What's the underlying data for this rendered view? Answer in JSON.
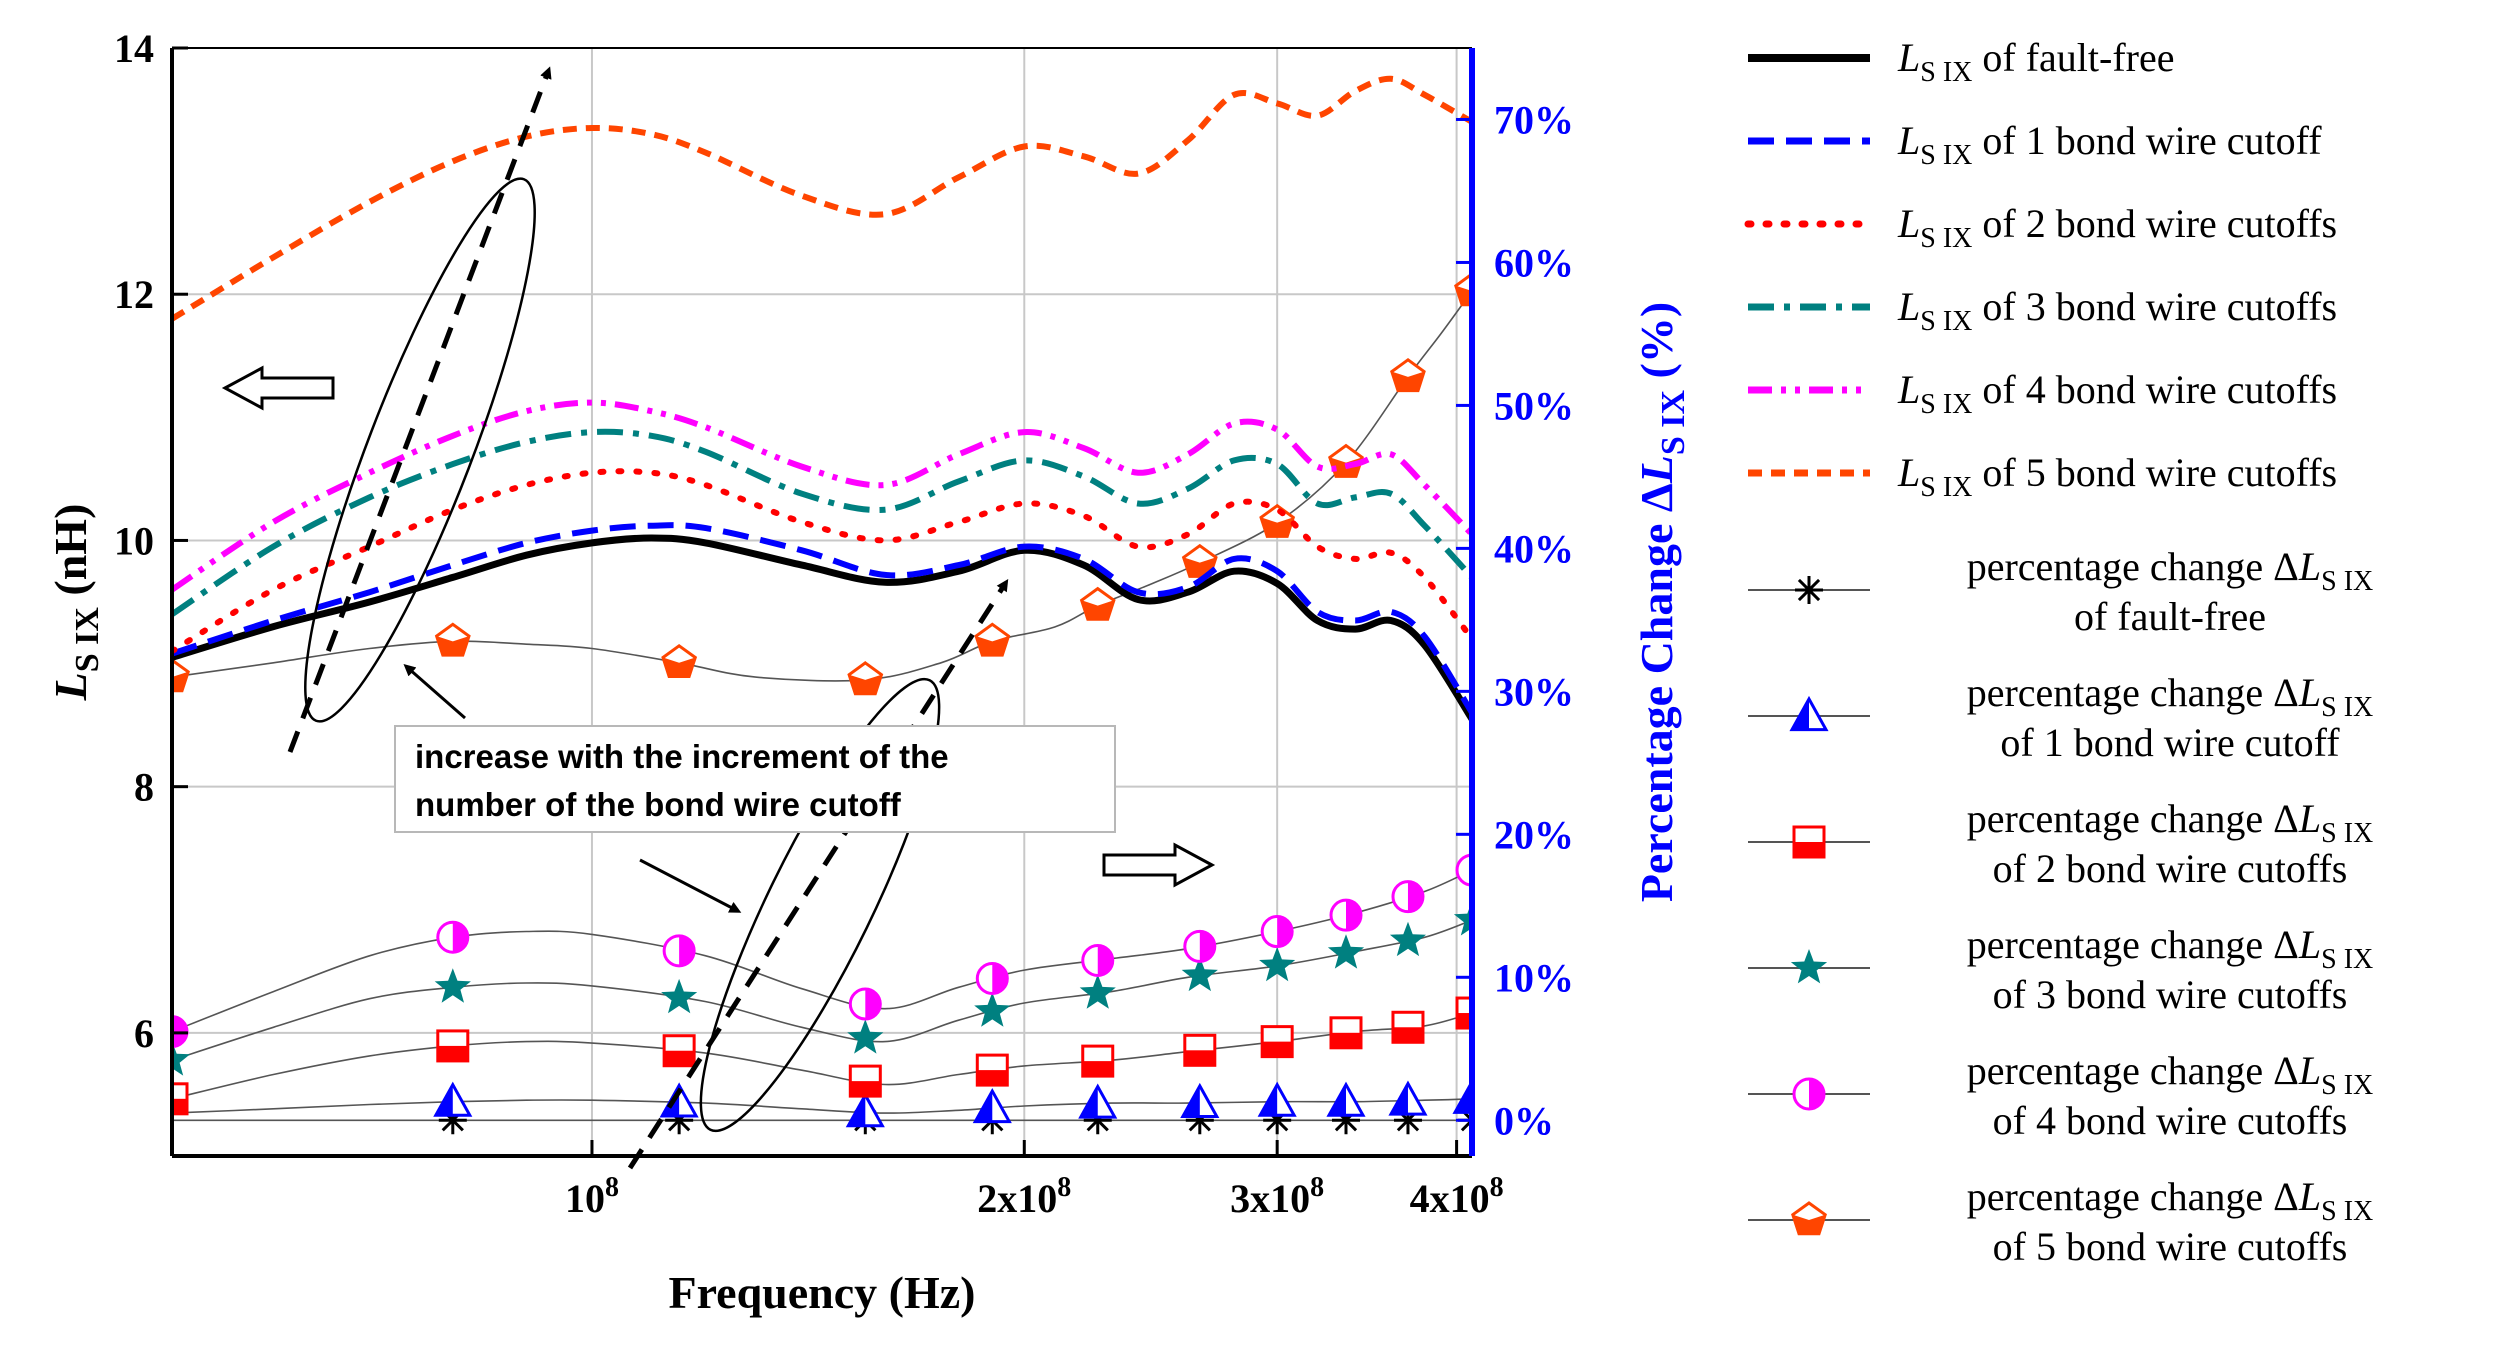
{
  "chart_data": {
    "type": "line",
    "x_axis": {
      "label": "Frequency (Hz)",
      "scale": "log",
      "range": [
        51000000,
        410000000
      ],
      "ticks": [
        {
          "value": 100000000,
          "label": "10",
          "exp": "8"
        },
        {
          "value": 200000000,
          "label": "2x10",
          "exp": "8"
        },
        {
          "value": 300000000,
          "label": "3x10",
          "exp": "8"
        },
        {
          "value": 400000000,
          "label": "4x10",
          "exp": "8"
        }
      ]
    },
    "y_axis_left": {
      "label_main": "L",
      "label_sub": "S_IX",
      "label_unit": " (nH)",
      "range": [
        5,
        14
      ],
      "ticks": [
        "6",
        "8",
        "10",
        "12",
        "14"
      ]
    },
    "y_axis_right": {
      "label_main": "Percentage Change ΔL",
      "label_sub": "S_IX",
      "label_unit": " (%)",
      "color": "#0000ff",
      "range": [
        -2.5,
        75
      ],
      "ticks": [
        "0%",
        "10%",
        "20%",
        "30%",
        "40%",
        "50%",
        "60%",
        "70%"
      ]
    },
    "inductance_series": [
      {
        "name_main": "L",
        "name_sub": "S_IX",
        "name_rest": " of fault-free",
        "color": "#000000",
        "style": "solid",
        "x": [
          51000000,
          60000000,
          70000000,
          80000000,
          90000000,
          100000000,
          110000000,
          120000000,
          140000000,
          160000000,
          180000000,
          200000000,
          220000000,
          240000000,
          260000000,
          280000000,
          300000000,
          320000000,
          340000000,
          360000000,
          380000000,
          410000000
        ],
        "y": [
          9.05,
          9.3,
          9.5,
          9.7,
          9.88,
          9.98,
          10.02,
          9.98,
          9.8,
          9.66,
          9.75,
          9.92,
          9.8,
          9.52,
          9.58,
          9.75,
          9.65,
          9.35,
          9.28,
          9.35,
          9.15,
          8.55
        ]
      },
      {
        "name_main": "L",
        "name_sub": "S_IX",
        "name_rest": " of 1 bond wire cutoff",
        "color": "#0000ff",
        "style": "dashed",
        "x": [
          51000000,
          60000000,
          70000000,
          80000000,
          90000000,
          100000000,
          110000000,
          120000000,
          140000000,
          160000000,
          180000000,
          200000000,
          220000000,
          240000000,
          260000000,
          280000000,
          300000000,
          320000000,
          340000000,
          360000000,
          380000000,
          410000000
        ],
        "y": [
          9.08,
          9.35,
          9.58,
          9.8,
          9.98,
          10.08,
          10.12,
          10.1,
          9.92,
          9.72,
          9.8,
          9.95,
          9.85,
          9.58,
          9.62,
          9.85,
          9.75,
          9.42,
          9.35,
          9.42,
          9.22,
          8.6
        ]
      },
      {
        "name_main": "L",
        "name_sub": "S_IX",
        "name_rest": " of 2 bond wire cutoffs",
        "color": "#ff0000",
        "style": "dotted",
        "x": [
          51000000,
          60000000,
          70000000,
          80000000,
          90000000,
          100000000,
          110000000,
          120000000,
          140000000,
          160000000,
          180000000,
          200000000,
          220000000,
          240000000,
          260000000,
          280000000,
          300000000,
          320000000,
          340000000,
          360000000,
          380000000,
          410000000
        ],
        "y": [
          9.1,
          9.6,
          9.95,
          10.25,
          10.45,
          10.55,
          10.55,
          10.45,
          10.15,
          10.0,
          10.15,
          10.3,
          10.2,
          9.95,
          10.05,
          10.3,
          10.25,
          9.95,
          9.85,
          9.9,
          9.7,
          9.2
        ]
      },
      {
        "name_main": "L",
        "name_sub": "S_IX",
        "name_rest": " of 3 bond wire cutoffs",
        "color": "#008080",
        "style": "dashdot",
        "x": [
          51000000,
          60000000,
          70000000,
          80000000,
          90000000,
          100000000,
          110000000,
          120000000,
          140000000,
          160000000,
          180000000,
          200000000,
          220000000,
          240000000,
          260000000,
          280000000,
          300000000,
          320000000,
          340000000,
          360000000,
          380000000,
          410000000
        ],
        "y": [
          9.4,
          9.95,
          10.35,
          10.62,
          10.8,
          10.88,
          10.85,
          10.72,
          10.38,
          10.25,
          10.48,
          10.65,
          10.52,
          10.3,
          10.42,
          10.65,
          10.62,
          10.3,
          10.35,
          10.38,
          10.12,
          9.7
        ]
      },
      {
        "name_main": "L",
        "name_sub": "S_IX",
        "name_rest": " of 4 bond wire cutoffs",
        "color": "#ff00ff",
        "style": "dashdotdot",
        "x": [
          51000000,
          60000000,
          70000000,
          80000000,
          90000000,
          100000000,
          110000000,
          120000000,
          140000000,
          160000000,
          180000000,
          200000000,
          220000000,
          240000000,
          260000000,
          280000000,
          300000000,
          320000000,
          340000000,
          360000000,
          380000000,
          410000000
        ],
        "y": [
          9.6,
          10.15,
          10.55,
          10.85,
          11.05,
          11.12,
          11.05,
          10.92,
          10.6,
          10.45,
          10.7,
          10.88,
          10.75,
          10.55,
          10.7,
          10.95,
          10.9,
          10.6,
          10.62,
          10.7,
          10.45,
          10.05
        ]
      },
      {
        "name_main": "L",
        "name_sub": "S_IX",
        "name_rest": " of 5 bond wire cutoffs",
        "color": "#ff4500",
        "style": "shortdash",
        "x": [
          51000000,
          60000000,
          70000000,
          80000000,
          90000000,
          100000000,
          110000000,
          120000000,
          140000000,
          160000000,
          180000000,
          200000000,
          220000000,
          240000000,
          260000000,
          280000000,
          300000000,
          320000000,
          340000000,
          360000000,
          380000000,
          410000000
        ],
        "y": [
          11.8,
          12.3,
          12.75,
          13.08,
          13.28,
          13.35,
          13.3,
          13.15,
          12.8,
          12.65,
          12.95,
          13.2,
          13.12,
          12.98,
          13.25,
          13.62,
          13.55,
          13.45,
          13.65,
          13.75,
          13.62,
          13.4
        ]
      }
    ],
    "percentage_series": [
      {
        "name_prefix": "percentage change ΔL",
        "name_sub": "S_IX",
        "name_rest": "of fault-free",
        "marker": "asterisk",
        "color": "#000000",
        "x": [
          51000000,
          60000000,
          70000000,
          80000000,
          90000000,
          100000000,
          120000000,
          140000000,
          160000000,
          180000000,
          200000000,
          230000000,
          260000000,
          300000000,
          340000000,
          380000000,
          410000000
        ],
        "y": [
          0,
          0,
          0,
          0,
          0,
          0,
          0,
          0,
          0,
          0,
          0,
          0,
          0,
          0,
          0,
          0,
          0
        ],
        "markers_x": [
          80000000,
          115000000,
          155000000,
          190000000,
          225000000,
          265000000,
          300000000,
          335000000,
          370000000,
          410000000
        ]
      },
      {
        "name_prefix": "percentage change ΔL",
        "name_sub": "S_IX",
        "name_rest": "of 1 bond wire cutoff",
        "marker": "triangle-half",
        "color": "#0000ff",
        "x": [
          51000000,
          60000000,
          70000000,
          80000000,
          90000000,
          100000000,
          120000000,
          140000000,
          160000000,
          180000000,
          200000000,
          230000000,
          260000000,
          300000000,
          340000000,
          380000000,
          410000000
        ],
        "y": [
          0.5,
          0.8,
          1.1,
          1.3,
          1.4,
          1.4,
          1.2,
          0.8,
          0.5,
          0.7,
          1.0,
          1.2,
          1.2,
          1.3,
          1.3,
          1.4,
          1.5
        ],
        "markers_x": [
          80000000,
          115000000,
          155000000,
          190000000,
          225000000,
          265000000,
          300000000,
          335000000,
          370000000,
          410000000
        ]
      },
      {
        "name_prefix": "percentage change ΔL",
        "name_sub": "S_IX",
        "name_rest": "of 2 bond wire cutoffs",
        "marker": "square-half",
        "color": "#ff0000",
        "x": [
          51000000,
          60000000,
          70000000,
          80000000,
          90000000,
          100000000,
          120000000,
          140000000,
          160000000,
          180000000,
          200000000,
          230000000,
          260000000,
          300000000,
          340000000,
          380000000,
          410000000
        ],
        "y": [
          1.5,
          3.2,
          4.5,
          5.2,
          5.5,
          5.4,
          4.7,
          3.5,
          2.5,
          3.2,
          3.8,
          4.2,
          4.8,
          5.5,
          6.2,
          6.6,
          7.5
        ],
        "markers_x": [
          51000000,
          80000000,
          115000000,
          155000000,
          190000000,
          225000000,
          265000000,
          300000000,
          335000000,
          370000000,
          410000000
        ]
      },
      {
        "name_prefix": "percentage change ΔL",
        "name_sub": "S_IX",
        "name_rest": "of 3 bond wire cutoffs",
        "marker": "star",
        "color": "#008080",
        "x": [
          51000000,
          60000000,
          70000000,
          80000000,
          90000000,
          100000000,
          120000000,
          140000000,
          160000000,
          180000000,
          200000000,
          230000000,
          260000000,
          300000000,
          340000000,
          380000000,
          410000000
        ],
        "y": [
          4.2,
          6.5,
          8.5,
          9.3,
          9.6,
          9.4,
          8.3,
          6.5,
          5.5,
          7.0,
          8.2,
          9.0,
          10.0,
          10.8,
          11.8,
          12.8,
          14.0
        ],
        "markers_x": [
          51000000,
          80000000,
          115000000,
          155000000,
          190000000,
          225000000,
          265000000,
          300000000,
          335000000,
          370000000,
          410000000
        ]
      },
      {
        "name_prefix": "percentage change ΔL",
        "name_sub": "S_IX",
        "name_rest": "of 4 bond wire cutoffs",
        "marker": "circle-half",
        "color": "#ff00ff",
        "x": [
          51000000,
          60000000,
          70000000,
          80000000,
          90000000,
          100000000,
          120000000,
          140000000,
          160000000,
          180000000,
          200000000,
          230000000,
          260000000,
          300000000,
          340000000,
          380000000,
          410000000
        ],
        "y": [
          6.2,
          9.0,
          11.5,
          12.8,
          13.2,
          13.0,
          11.5,
          9.2,
          7.8,
          9.3,
          10.5,
          11.3,
          12.0,
          13.2,
          14.5,
          16.0,
          17.5
        ],
        "markers_x": [
          51000000,
          80000000,
          115000000,
          155000000,
          190000000,
          225000000,
          265000000,
          300000000,
          335000000,
          370000000,
          410000000
        ]
      },
      {
        "name_prefix": "percentage change ΔL",
        "name_sub": "S_IX",
        "name_rest": "of 5 bond wire cutoffs",
        "marker": "pentagon",
        "color": "#ff4500",
        "x": [
          51000000,
          60000000,
          70000000,
          80000000,
          90000000,
          100000000,
          115000000,
          130000000,
          155000000,
          175000000,
          190000000,
          210000000,
          225000000,
          245000000,
          265000000,
          300000000,
          335000000,
          370000000,
          390000000,
          410000000
        ],
        "y": [
          31.0,
          32.0,
          33.0,
          33.5,
          33.3,
          33.0,
          32.0,
          31.0,
          30.8,
          32.0,
          33.5,
          34.5,
          36.0,
          37.5,
          39.0,
          41.8,
          46.0,
          52.0,
          55.0,
          58.0
        ],
        "markers_x": [
          51000000,
          80000000,
          115000000,
          155000000,
          190000000,
          225000000,
          265000000,
          300000000,
          335000000,
          370000000,
          410000000
        ]
      }
    ],
    "annotation": {
      "line1": "increase with the increment of the",
      "line2": "number of the bond wire cutoff"
    },
    "grid": true,
    "legend_position": "right"
  }
}
